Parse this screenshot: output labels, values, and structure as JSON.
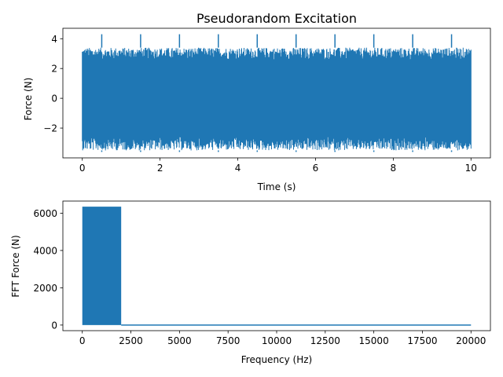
{
  "chart_data": [
    {
      "type": "line",
      "title": "Pseudorandom Excitation",
      "xlabel": "Time (s)",
      "ylabel": "Force (N)",
      "xlim": [
        -0.5,
        10.5
      ],
      "ylim": [
        -4.0,
        4.7
      ],
      "xticks": [
        0,
        2,
        4,
        6,
        8,
        10
      ],
      "xtick_labels": [
        "0",
        "2",
        "4",
        "6",
        "8",
        "10"
      ],
      "yticks": [
        -2,
        0,
        2,
        4
      ],
      "ytick_labels": [
        "−2",
        "0",
        "2",
        "4"
      ],
      "grid": false,
      "color": "#1f77b4",
      "series": [
        {
          "x_range": [
            0,
            10
          ],
          "period_s": 1.0,
          "typical_envelope": [
            -2.6,
            2.6
          ],
          "burst_envelope": [
            -3.5,
            3.4
          ],
          "peak_values": [
            {
              "x": 0.5,
              "y": 4.3
            },
            {
              "x": 1.5,
              "y": 4.3
            },
            {
              "x": 2.5,
              "y": 4.3
            },
            {
              "x": 3.5,
              "y": 4.3
            },
            {
              "x": 4.5,
              "y": 4.3
            },
            {
              "x": 5.5,
              "y": 4.3
            },
            {
              "x": 6.5,
              "y": 4.3
            },
            {
              "x": 7.5,
              "y": 4.3
            },
            {
              "x": 8.5,
              "y": 4.3
            },
            {
              "x": 9.5,
              "y": 4.3
            }
          ],
          "trough_values": [
            {
              "x": 0.5,
              "y": -3.6
            },
            {
              "x": 1.5,
              "y": -3.6
            },
            {
              "x": 2.5,
              "y": -3.6
            },
            {
              "x": 3.5,
              "y": -3.6
            },
            {
              "x": 4.5,
              "y": -3.6
            },
            {
              "x": 5.5,
              "y": -3.6
            },
            {
              "x": 6.5,
              "y": -3.6
            },
            {
              "x": 7.5,
              "y": -3.6
            },
            {
              "x": 8.5,
              "y": -3.6
            },
            {
              "x": 9.5,
              "y": -3.6
            }
          ]
        }
      ]
    },
    {
      "type": "line",
      "title": "",
      "xlabel": "Frequency (Hz)",
      "ylabel": "FFT Force (N)",
      "xlim": [
        -1000,
        21000
      ],
      "ylim": [
        -300,
        6650
      ],
      "xticks": [
        0,
        2500,
        5000,
        7500,
        10000,
        12500,
        15000,
        17500,
        20000
      ],
      "xtick_labels": [
        "0",
        "2500",
        "5000",
        "7500",
        "10000",
        "12500",
        "15000",
        "17500",
        "20000"
      ],
      "yticks": [
        0,
        2000,
        4000,
        6000
      ],
      "ytick_labels": [
        "0",
        "2000",
        "4000",
        "6000"
      ],
      "grid": false,
      "color": "#1f77b4",
      "series": [
        {
          "band": [
            0,
            2000
          ],
          "band_magnitude": 6350,
          "out_of_band_magnitude": 0,
          "x_range": [
            0,
            20000
          ]
        }
      ]
    }
  ]
}
